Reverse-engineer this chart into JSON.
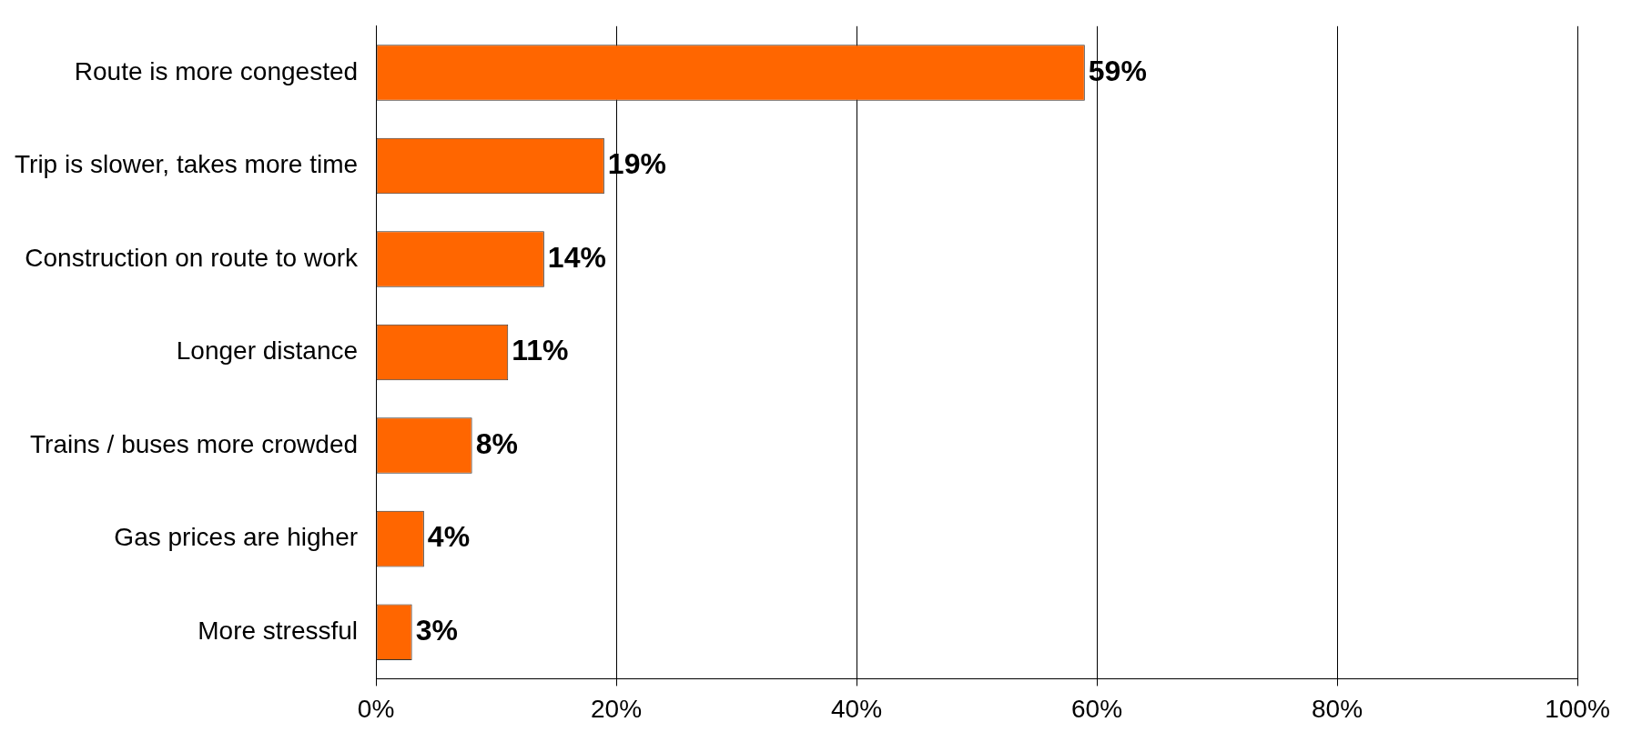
{
  "chart_data": {
    "type": "bar",
    "orientation": "horizontal",
    "categories": [
      "Route is more congested",
      "Trip is slower, takes more time",
      "Construction on route to work",
      "Longer distance",
      "Trains / buses more crowded",
      "Gas prices are higher",
      "More stressful"
    ],
    "values": [
      59,
      19,
      14,
      11,
      8,
      4,
      3
    ],
    "value_labels": [
      "59%",
      "19%",
      "14%",
      "11%",
      "8%",
      "4%",
      "3%"
    ],
    "color": "#ff6600",
    "xlim": [
      0,
      100
    ],
    "xticks": [
      {
        "value": 0,
        "label": "0%"
      },
      {
        "value": 20,
        "label": "20%"
      },
      {
        "value": 40,
        "label": "40%"
      },
      {
        "value": 60,
        "label": "60%"
      },
      {
        "value": 80,
        "label": "80%"
      },
      {
        "value": 100,
        "label": "100%"
      }
    ],
    "grid": "x",
    "legend": false
  }
}
